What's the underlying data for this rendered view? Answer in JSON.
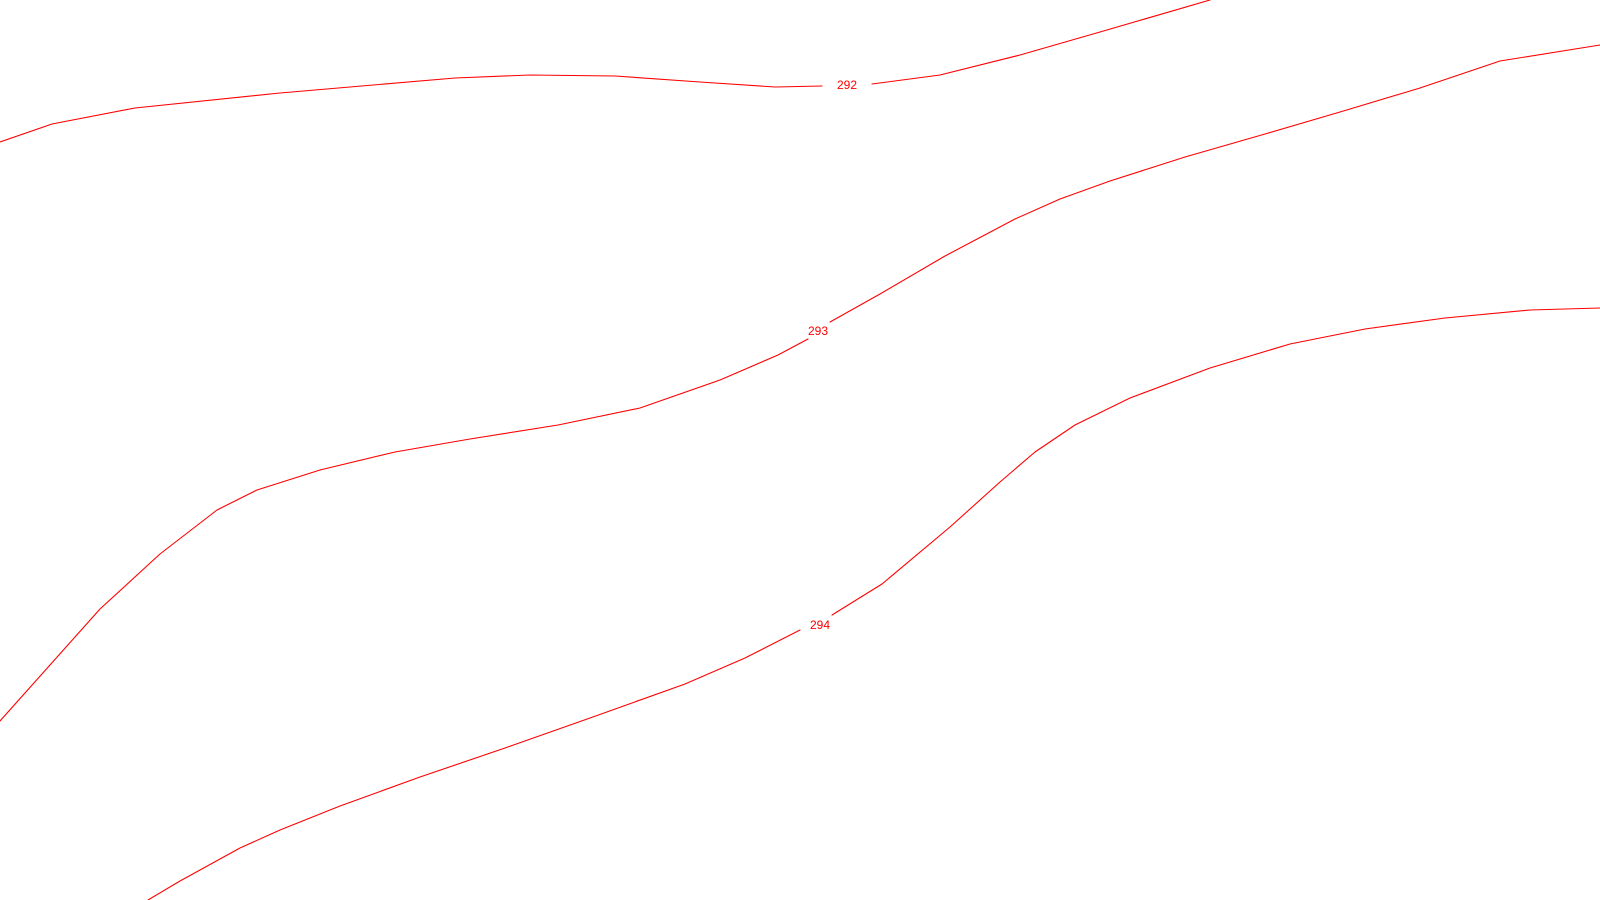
{
  "map": {
    "line_color": "#ff0000",
    "background_color": "#ffffff",
    "contours": [
      {
        "elevation": 292,
        "label": "292"
      },
      {
        "elevation": 293,
        "label": "293"
      },
      {
        "elevation": 294,
        "label": "294"
      }
    ]
  }
}
